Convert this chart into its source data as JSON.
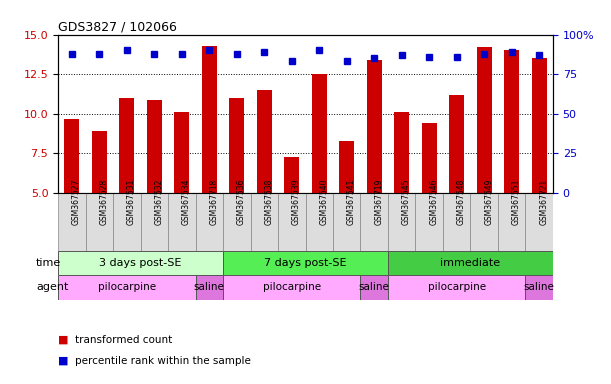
{
  "title": "GDS3827 / 102066",
  "samples": [
    "GSM367527",
    "GSM367528",
    "GSM367531",
    "GSM367532",
    "GSM367534",
    "GSM367718",
    "GSM367536",
    "GSM367538",
    "GSM367539",
    "GSM367540",
    "GSM367541",
    "GSM367719",
    "GSM367545",
    "GSM367546",
    "GSM367548",
    "GSM367549",
    "GSM367551",
    "GSM367721"
  ],
  "bar_values": [
    9.7,
    8.9,
    11.0,
    10.9,
    10.1,
    14.3,
    11.0,
    11.5,
    7.3,
    12.5,
    8.3,
    13.4,
    10.1,
    9.4,
    11.2,
    14.2,
    14.0,
    13.5
  ],
  "dot_values": [
    88,
    88,
    90,
    88,
    88,
    90,
    88,
    89,
    83,
    90,
    83,
    85,
    87,
    86,
    86,
    88,
    89,
    87
  ],
  "bar_color": "#cc0000",
  "dot_color": "#0000cc",
  "ylim_left": [
    5,
    15
  ],
  "ylim_right": [
    0,
    100
  ],
  "yticks_left": [
    5,
    7.5,
    10,
    12.5,
    15
  ],
  "yticks_right": [
    0,
    25,
    50,
    75,
    100
  ],
  "time_groups": [
    {
      "label": "3 days post-SE",
      "start": 0,
      "end": 6,
      "color": "#ccffcc"
    },
    {
      "label": "7 days post-SE",
      "start": 6,
      "end": 12,
      "color": "#55ee55"
    },
    {
      "label": "immediate",
      "start": 12,
      "end": 18,
      "color": "#44cc44"
    }
  ],
  "agent_groups": [
    {
      "label": "pilocarpine",
      "start": 0,
      "end": 5,
      "color": "#ffaaff"
    },
    {
      "label": "saline",
      "start": 5,
      "end": 6,
      "color": "#dd77dd"
    },
    {
      "label": "pilocarpine",
      "start": 6,
      "end": 11,
      "color": "#ffaaff"
    },
    {
      "label": "saline",
      "start": 11,
      "end": 12,
      "color": "#dd77dd"
    },
    {
      "label": "pilocarpine",
      "start": 12,
      "end": 17,
      "color": "#ffaaff"
    },
    {
      "label": "saline",
      "start": 17,
      "end": 18,
      "color": "#dd77dd"
    }
  ],
  "xlabel_time": "time",
  "xlabel_agent": "agent",
  "legend_bar": "transformed count",
  "legend_dot": "percentile rank within the sample",
  "sample_cell_color": "#dddddd",
  "sample_cell_edge": "#888888"
}
